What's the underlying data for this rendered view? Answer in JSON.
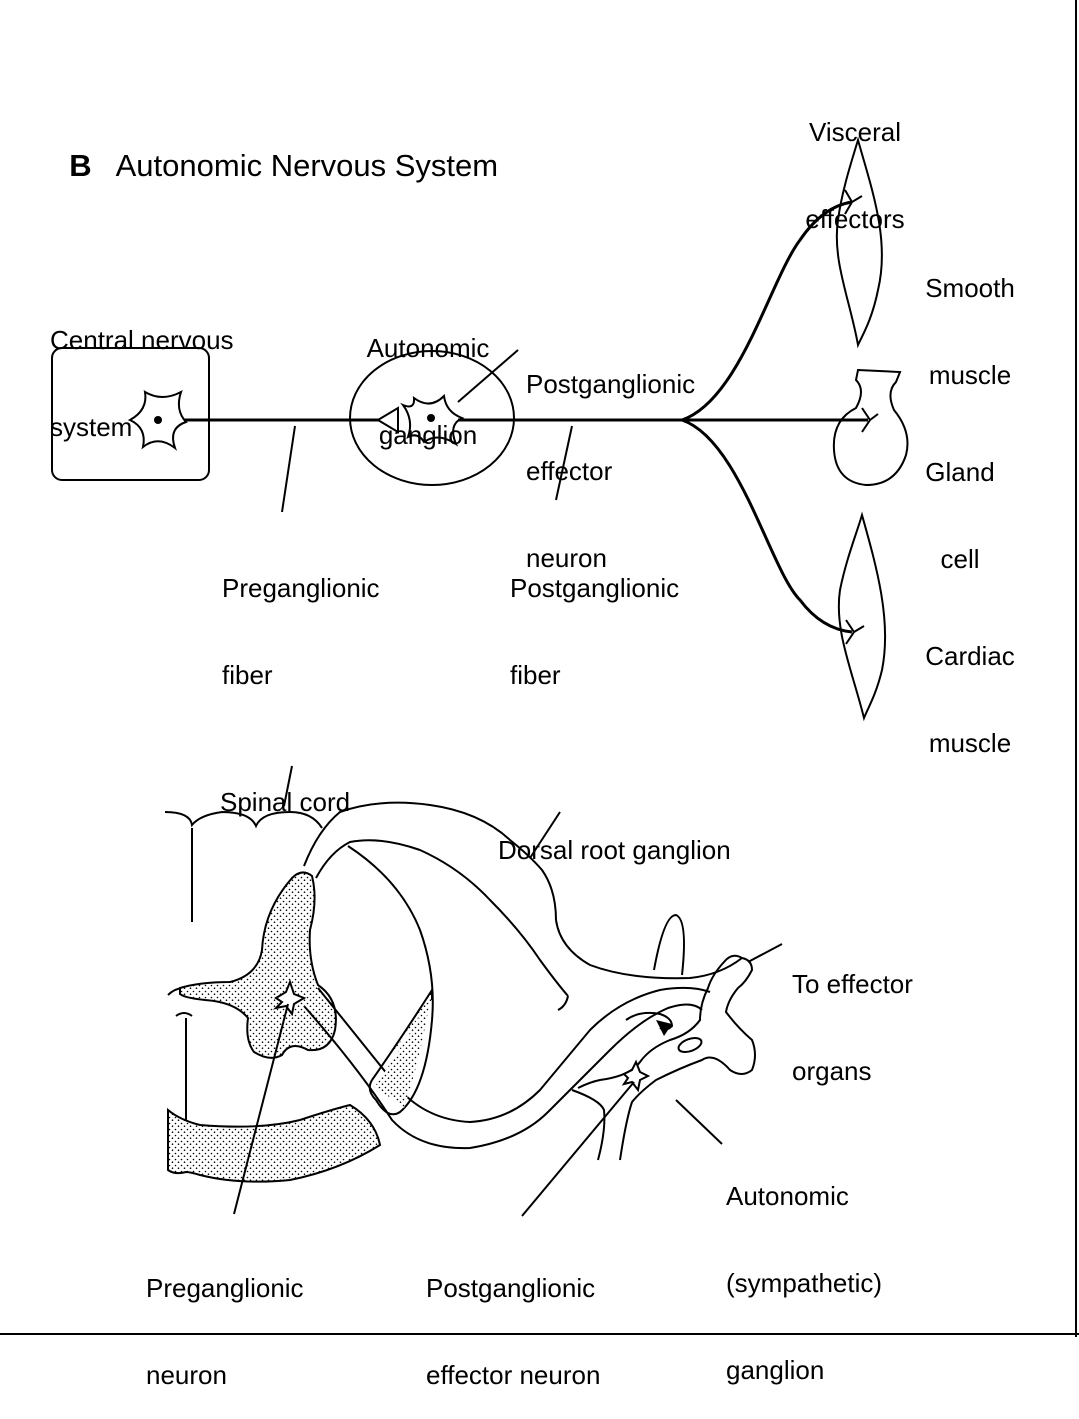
{
  "title": {
    "letter": "B",
    "text": "Autonomic Nervous System"
  },
  "top_diagram": {
    "cns_label": [
      "Central nervous",
      "system"
    ],
    "ganglion_label": [
      "Autonomic",
      "ganglion"
    ],
    "postganglionic_neuron_label": [
      "Postganglionic",
      "effector",
      "neuron"
    ],
    "preganglionic_fiber_label": [
      "Preganglionic",
      "fiber"
    ],
    "postganglionic_fiber_label": [
      "Postganglionic",
      "fiber"
    ],
    "visceral_effectors_label": [
      "Visceral",
      "effectors"
    ],
    "smooth_muscle_label": [
      "Smooth",
      "muscle"
    ],
    "gland_cell_label": [
      "Gland",
      "cell"
    ],
    "cardiac_muscle_label": [
      "Cardiac",
      "muscle"
    ]
  },
  "bottom_diagram": {
    "spinal_cord_label": "Spinal cord",
    "dorsal_root_ganglion_label": "Dorsal root ganglion",
    "to_effector_organs_label": [
      "To effector",
      "organs"
    ],
    "autonomic_sympathetic_ganglion_label": [
      "Autonomic",
      "(sympathetic)",
      "ganglion"
    ],
    "preganglionic_neuron_label": [
      "Preganglionic",
      "neuron"
    ],
    "postganglionic_effector_neuron_label": [
      "Postganglionic",
      "effector neuron"
    ]
  },
  "colors": {
    "ink": "#000000",
    "paper": "#ffffff"
  }
}
